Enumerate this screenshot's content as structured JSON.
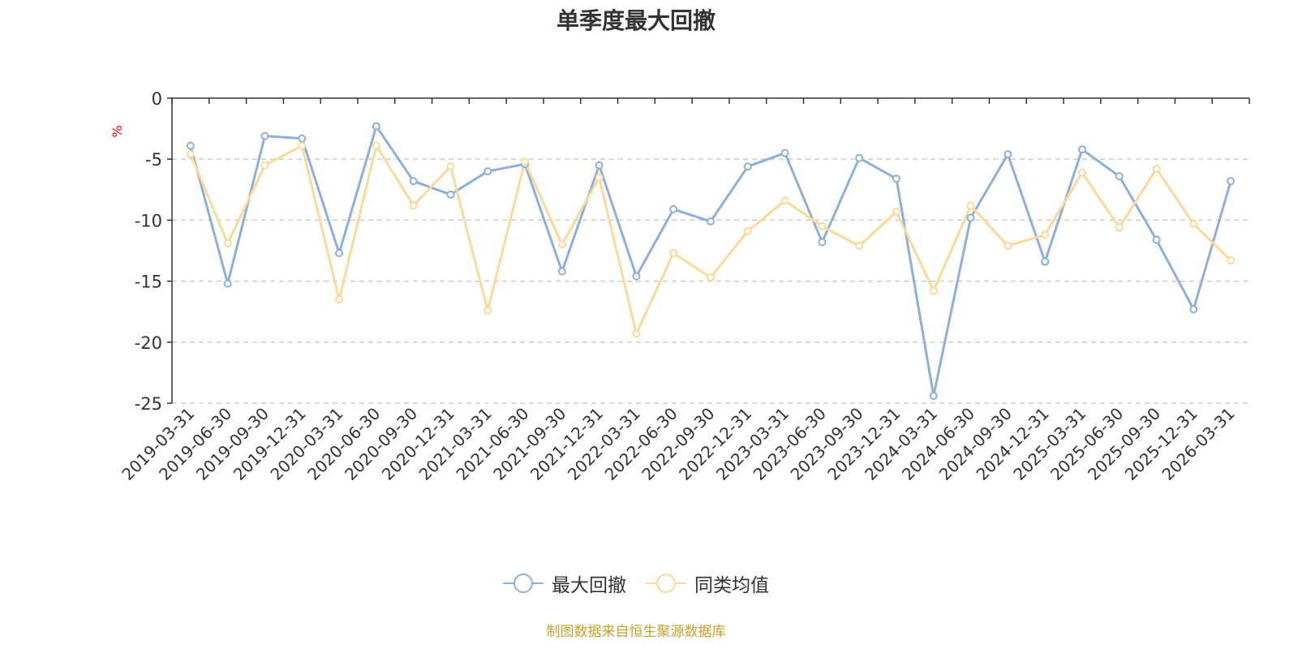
{
  "chart_data": {
    "type": "line",
    "title": "单季度最大回撤",
    "ylabel": "%",
    "xlabel": "",
    "ylim": [
      -25,
      0
    ],
    "yticks": [
      0,
      -5,
      -10,
      -15,
      -20,
      -25
    ],
    "grid": true,
    "legend_position": "bottom",
    "categories": [
      "2019-03-31",
      "2019-06-30",
      "2019-09-30",
      "2019-12-31",
      "2020-03-31",
      "2020-06-30",
      "2020-09-30",
      "2020-12-31",
      "2021-03-31",
      "2021-06-30",
      "2021-09-30",
      "2021-12-31",
      "2022-03-31",
      "2022-06-30",
      "2022-09-30",
      "2022-12-31",
      "2023-03-31",
      "2023-06-30",
      "2023-09-30",
      "2023-12-31",
      "2024-03-31",
      "2024-06-30",
      "2024-09-30",
      "2024-12-31",
      "2025-03-31",
      "2025-06-30",
      "2025-09-30",
      "2025-12-31",
      "2026-03-31"
    ],
    "series": [
      {
        "name": "最大回撤",
        "color": "#8eaedb",
        "values": [
          -3.9,
          -15.2,
          -3.1,
          -3.3,
          -12.7,
          -2.3,
          -6.8,
          -7.9,
          -6.0,
          -5.4,
          -14.2,
          -5.5,
          -14.6,
          -9.1,
          -10.1,
          -5.6,
          -4.5,
          -11.8,
          -4.9,
          -6.6,
          -24.4,
          -9.8,
          -4.6,
          -13.4,
          -4.2,
          -6.4,
          -11.6,
          -17.3,
          -6.8
        ]
      },
      {
        "name": "同类均值",
        "color": "#fad99a",
        "values": [
          -4.6,
          -11.9,
          -5.5,
          -3.9,
          -16.5,
          -3.9,
          -8.8,
          -5.6,
          -17.4,
          -5.2,
          -12.0,
          -6.5,
          -19.3,
          -12.7,
          -14.7,
          -10.9,
          -8.4,
          -10.5,
          -12.1,
          -9.3,
          -15.8,
          -8.8,
          -12.1,
          -11.2,
          -6.1,
          -10.6,
          -5.8,
          -10.3,
          -13.3
        ]
      }
    ]
  },
  "source_note": "制图数据来自恒生聚源数据库"
}
